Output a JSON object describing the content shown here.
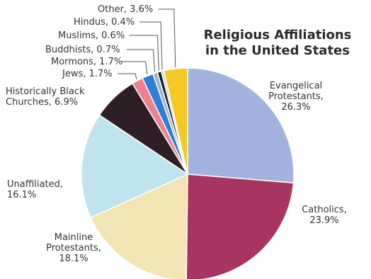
{
  "chart_data": {
    "type": "pie",
    "title_lines": [
      "Religious Affiliations",
      "in the United States"
    ],
    "slices": [
      {
        "label_lines": [
          "Evangelical",
          "Protestants,",
          "26.3%"
        ],
        "label": "Evangelical Protestants",
        "value": 26.3,
        "color": "#a3b3e0"
      },
      {
        "label_lines": [
          "Catholics,",
          "23.9%"
        ],
        "label": "Catholics",
        "value": 23.9,
        "color": "#a83561"
      },
      {
        "label_lines": [
          "Mainline",
          "Protestants,",
          "18.1%"
        ],
        "label": "Mainline Protestants",
        "value": 18.1,
        "color": "#f2e4b3"
      },
      {
        "label_lines": [
          "Unaffiliated,",
          "16.1%"
        ],
        "label": "Unaffiliated",
        "value": 16.1,
        "color": "#bfe4f0"
      },
      {
        "label_lines": [
          "Historically Black",
          "Churches, 6.9%"
        ],
        "label": "Historically Black Churches",
        "value": 6.9,
        "color": "#2e1f26"
      },
      {
        "label_lines": [
          "Jews, 1.7%"
        ],
        "label": "Jews",
        "value": 1.7,
        "color": "#f07f8f"
      },
      {
        "label_lines": [
          "Mormons, 1.7%"
        ],
        "label": "Mormons",
        "value": 1.7,
        "color": "#2f7fd6"
      },
      {
        "label_lines": [
          "Buddhists, 0.7%"
        ],
        "label": "Buddhists",
        "value": 0.7,
        "color": "#9fb3c6"
      },
      {
        "label_lines": [
          "Muslims, 0.6%"
        ],
        "label": "Muslims",
        "value": 0.6,
        "color": "#1a1a2e"
      },
      {
        "label_lines": [
          "Hindus, 0.4%"
        ],
        "label": "Hindus",
        "value": 0.4,
        "color": "#d0d0d0"
      },
      {
        "label_lines": [
          "Other, 3.6%"
        ],
        "label": "Other",
        "value": 3.6,
        "color": "#f5c924"
      }
    ],
    "start": "top",
    "direction": "clockwise",
    "legend": "none"
  }
}
